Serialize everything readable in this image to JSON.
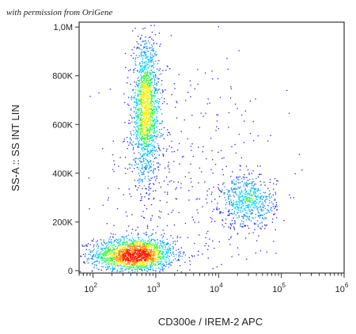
{
  "watermark": "with permission from OriGene",
  "chart_data": {
    "type": "scatter",
    "subtype": "flow-cytometry density dot plot",
    "xlabel": "CD300e / IREM-2 APC",
    "ylabel": "SS-A :: SS INT LIN",
    "xscale": "log",
    "yscale": "linear",
    "xlim": [
      60,
      1000000
    ],
    "ylim": [
      -10000,
      1020000
    ],
    "x_ticks": [
      {
        "value": 100,
        "base": "10",
        "exp": "2"
      },
      {
        "value": 1000,
        "base": "10",
        "exp": "3"
      },
      {
        "value": 10000,
        "base": "10",
        "exp": "4"
      },
      {
        "value": 100000,
        "base": "10",
        "exp": "5"
      },
      {
        "value": 1000000,
        "base": "10",
        "exp": "6"
      }
    ],
    "y_ticks": [
      {
        "value": 0,
        "label": "0"
      },
      {
        "value": 200000,
        "label": "200K"
      },
      {
        "value": 400000,
        "label": "400K"
      },
      {
        "value": 600000,
        "label": "600K"
      },
      {
        "value": 800000,
        "label": "800K"
      },
      {
        "value": 1000000,
        "label": "1,0M"
      }
    ],
    "populations": [
      {
        "center_x": 450,
        "center_y": 65000,
        "spread_log_x": 0.32,
        "spread_y": 35000,
        "events": 1900
      },
      {
        "center_x": 700,
        "center_y": 660000,
        "spread_log_x": 0.11,
        "spread_y": 140000,
        "events": 1600
      },
      {
        "center_x": 30000,
        "center_y": 280000,
        "spread_log_x": 0.22,
        "spread_y": 55000,
        "events": 600
      },
      {
        "center_x": 3000,
        "center_y": 350000,
        "spread_log_x": 0.75,
        "spread_y": 260000,
        "events": 420
      }
    ],
    "density_colors": [
      "#1a1aff",
      "#0088ff",
      "#00d2ff",
      "#33ff33",
      "#ffee00",
      "#ff8800",
      "#ff1a00"
    ],
    "grid": false,
    "legend": "none"
  }
}
